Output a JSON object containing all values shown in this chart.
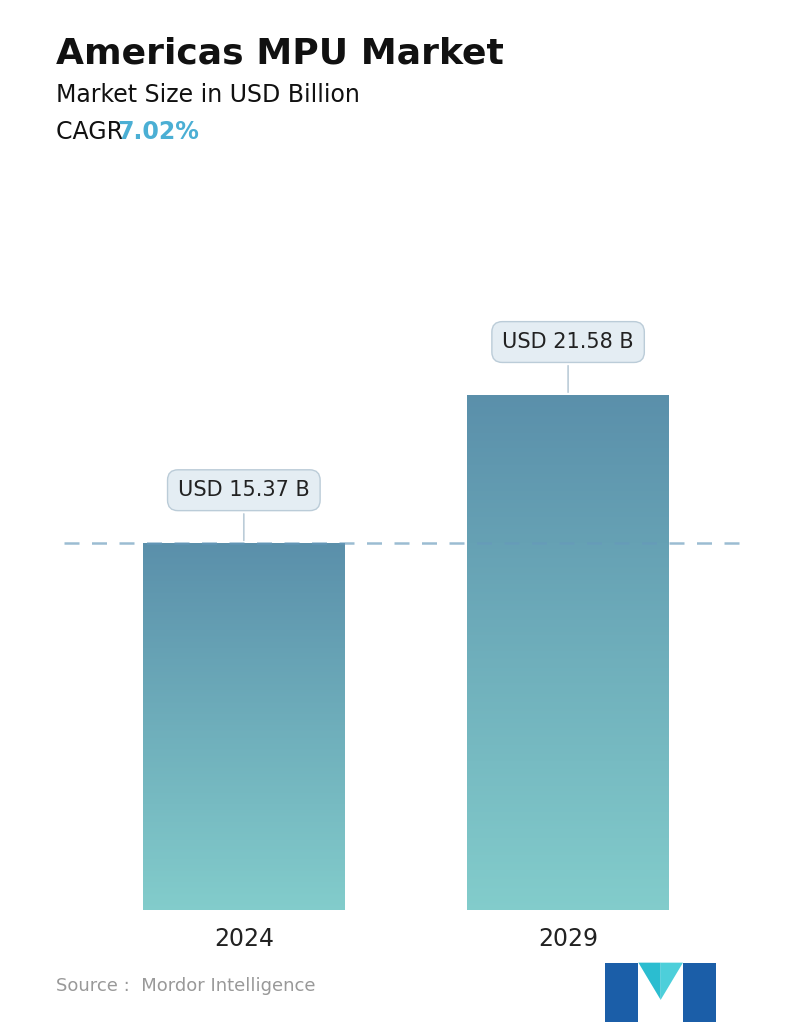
{
  "title": "Americas MPU Market",
  "subtitle": "Market Size in USD Billion",
  "cagr_label": "CAGR ",
  "cagr_value": "7.02%",
  "cagr_color": "#4BAFD4",
  "categories": [
    "2024",
    "2029"
  ],
  "values": [
    15.37,
    21.58
  ],
  "bar_labels": [
    "USD 15.37 B",
    "USD 21.58 B"
  ],
  "bar_color_top": "#6AAEC4",
  "bar_color_bottom": "#7ECFCB",
  "dashed_line_color": "#6699BB",
  "dashed_line_y": 15.37,
  "ylim": [
    0,
    26
  ],
  "source_text": "Source :  Mordor Intelligence",
  "source_color": "#999999",
  "background_color": "#ffffff",
  "title_fontsize": 26,
  "subtitle_fontsize": 17,
  "cagr_fontsize": 17,
  "xlabel_fontsize": 17,
  "annotation_fontsize": 15
}
